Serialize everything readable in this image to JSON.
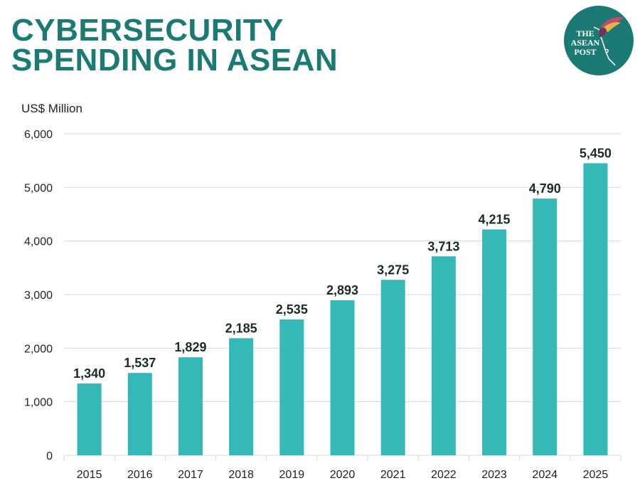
{
  "header": {
    "title_line1": "CYBERSECURITY",
    "title_line2": "SPENDING IN ASEAN"
  },
  "logo": {
    "line1": "THE",
    "line2": "ASEAN",
    "line3": "POST",
    "icon": "hummingbird-icon",
    "color": "#1b7a74"
  },
  "colors": {
    "title": "#1b7a74",
    "bar": "#35b8b8",
    "grid": "#d9d9d9"
  },
  "chart_data": {
    "type": "bar",
    "ylabel": "US$ Million",
    "ylim": [
      0,
      6000
    ],
    "yticks": [
      "0",
      "1,000",
      "2,000",
      "3,000",
      "4,000",
      "5,000",
      "6,000"
    ],
    "categories": [
      "2015",
      "2016",
      "2017",
      "2018",
      "2019",
      "2020",
      "2021",
      "2022",
      "2023",
      "2024",
      "2025"
    ],
    "values": [
      1340,
      1537,
      1829,
      2185,
      2535,
      2893,
      3275,
      3713,
      4215,
      4790,
      5450
    ],
    "data_labels": [
      "1,340",
      "1,537",
      "1,829",
      "2,185",
      "2,535",
      "2,893",
      "3,275",
      "3,713",
      "4,215",
      "4,790",
      "5,450"
    ],
    "grid": true,
    "legend": "none"
  }
}
